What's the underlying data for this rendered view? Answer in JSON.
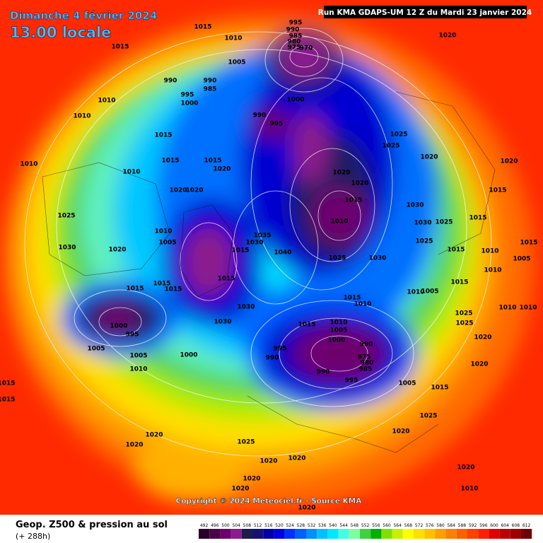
{
  "header": {
    "date": "Dimanche 4 février 2024",
    "time": "13.00 locale",
    "run": "Run KMA GDAPS-UM 12 Z du Mardi 23 janvier 2024"
  },
  "map": {
    "copyright": "Copyright © 2024 Meteociel.fr - Source KMA",
    "labels": [
      "1015",
      "995",
      "990",
      "985",
      "980",
      "975",
      "970",
      "1020",
      "1010",
      "1015",
      "1005",
      "990",
      "990",
      "985",
      "995",
      "1000",
      "1010",
      "1000",
      "990",
      "995",
      "1010",
      "1015",
      "1025",
      "1025",
      "1015",
      "1010",
      "1015",
      "1020",
      "1020",
      "1020",
      "1010",
      "1020",
      "1020",
      "1020",
      "1020",
      "1015",
      "1015",
      "1030",
      "1025",
      "1010",
      "1030",
      "1025",
      "1015",
      "1010",
      "1035",
      "1005",
      "1030",
      "1030",
      "1020",
      "1040",
      "1015",
      "1025",
      "1015",
      "1010",
      "1015",
      "1005",
      "1025",
      "1030",
      "1010",
      "1015",
      "1015",
      "1015",
      "1015",
      "1015",
      "1010",
      "1005",
      "1015",
      "1010",
      "1030",
      "1010",
      "1010",
      "1025",
      "1025",
      "1030",
      "1015",
      "1010",
      "1000",
      "1005",
      "995",
      "1020",
      "1000",
      "990",
      "995",
      "1005",
      "1005",
      "975",
      "980",
      "985",
      "990",
      "1000",
      "1020",
      "1010",
      "990",
      "995",
      "1005",
      "1015",
      "1015",
      "1015",
      "1025",
      "1020",
      "1020",
      "1020",
      "1025",
      "1020",
      "1020",
      "1020",
      "1020",
      "1020",
      "1010",
      "1020"
    ]
  },
  "footer": {
    "title": "Geop. Z500 & pression au sol",
    "lead": "(+ 288h)"
  },
  "legend": {
    "values": [
      492,
      496,
      500,
      504,
      508,
      512,
      516,
      520,
      524,
      528,
      532,
      536,
      540,
      544,
      548,
      552,
      556,
      560,
      564,
      568,
      572,
      576,
      580,
      584,
      588,
      592,
      596,
      600,
      604,
      608,
      612
    ],
    "colors": [
      "#2a002a",
      "#4b004b",
      "#6e006e",
      "#8c1c8c",
      "#1c1c50",
      "#141470",
      "#0000a8",
      "#0000e0",
      "#0030ff",
      "#0060ff",
      "#0090ff",
      "#00c0ff",
      "#00e8ff",
      "#40ffe0",
      "#80ffa0",
      "#40d040",
      "#00b000",
      "#80e000",
      "#c8f000",
      "#ffff00",
      "#ffe000",
      "#ffc000",
      "#ffa000",
      "#ff8000",
      "#ff6000",
      "#ff4000",
      "#ff2000",
      "#e00000",
      "#c00000",
      "#a00000",
      "#700000"
    ]
  }
}
